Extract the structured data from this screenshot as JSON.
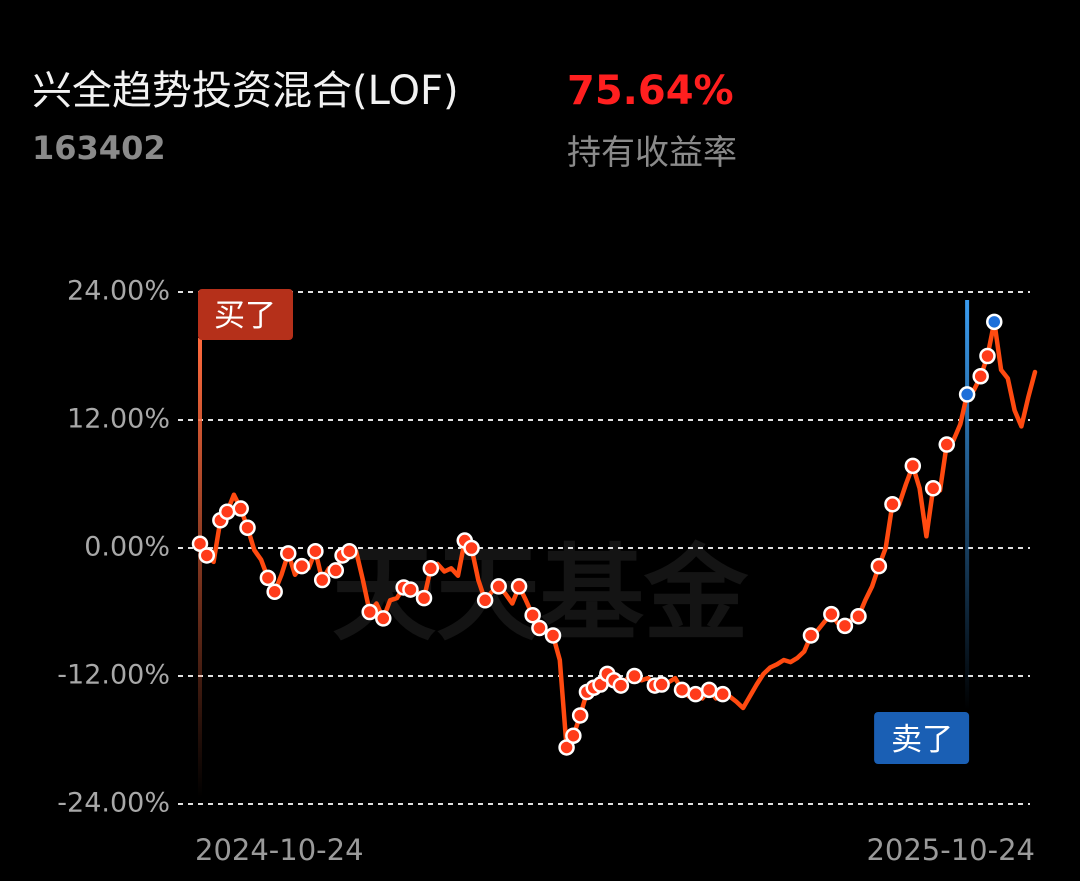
{
  "header": {
    "name": "兴全趋势投资混合(LOF)",
    "code": "163402",
    "return": "75.64%",
    "return_label": "持有收益率"
  },
  "chart_data": {
    "type": "line",
    "watermark": "天天基金",
    "categories": [
      "2024-10-24",
      null,
      null,
      null,
      null,
      null,
      null,
      null,
      null,
      null,
      null,
      null,
      null,
      null,
      null,
      null,
      null,
      null,
      null,
      null,
      null,
      null,
      null,
      null,
      null,
      null,
      null,
      null,
      null,
      null,
      null,
      null,
      null,
      null,
      null,
      null,
      null,
      null,
      null,
      null,
      null,
      null,
      null,
      null,
      null,
      null,
      null,
      null,
      null,
      null,
      null,
      null,
      null,
      null,
      null,
      null,
      null,
      null,
      null,
      null,
      null,
      null,
      null,
      null,
      null,
      null,
      null,
      null,
      null,
      null,
      null,
      null,
      null,
      null,
      null,
      null,
      null,
      null,
      null,
      null,
      null,
      null,
      null,
      null,
      null,
      null,
      null,
      null,
      null,
      null,
      null,
      null,
      null,
      null,
      null,
      null,
      null,
      null,
      null,
      null,
      null,
      null,
      null,
      null,
      null,
      null,
      null,
      null,
      null,
      null,
      null,
      null,
      null,
      null,
      null,
      null,
      null,
      null,
      null,
      null,
      null,
      null,
      null,
      "2025-10-24"
    ],
    "series": [
      {
        "style": "line",
        "color": "#ff4a10",
        "values": [
          0.4,
          -0.7,
          -1.3,
          2.6,
          3.4,
          5.0,
          3.7,
          1.9,
          -0.2,
          -1.1,
          -2.8,
          -4.1,
          -2.5,
          -0.5,
          -2.5,
          -1.7,
          -1.9,
          -0.3,
          -3.0,
          -1.9,
          -2.1,
          -0.7,
          -0.3,
          -0.3,
          -3.0,
          -6.0,
          -5.2,
          -6.6,
          -4.9,
          -4.7,
          -3.7,
          -3.9,
          -4.1,
          -4.7,
          -1.9,
          -1.5,
          -2.2,
          -1.9,
          -2.6,
          0.7,
          0.0,
          -3.0,
          -4.9,
          -4.1,
          -3.6,
          -4.3,
          -5.2,
          -3.6,
          -4.9,
          -6.3,
          -7.5,
          -7.9,
          -8.2,
          -10.5,
          -18.7,
          -17.6,
          -15.7,
          -13.5,
          -13.1,
          -12.8,
          -11.8,
          -12.4,
          -12.9,
          -12.2,
          -12.0,
          -12.4,
          -12.2,
          -12.9,
          -12.8,
          -12.6,
          -12.2,
          -13.3,
          -13.9,
          -13.7,
          -14.1,
          -13.3,
          -14.1,
          -13.7,
          -13.9,
          -14.4,
          -15.0,
          -13.9,
          -12.8,
          -11.8,
          -11.2,
          -10.9,
          -10.5,
          -10.7,
          -10.3,
          -9.7,
          -8.2,
          -7.7,
          -6.9,
          -6.2,
          -7.1,
          -7.3,
          -6.7,
          -6.4,
          -4.9,
          -3.6,
          -1.7,
          0.0,
          4.1,
          4.1,
          6.0,
          7.7,
          5.6,
          1.1,
          5.6,
          5.4,
          9.7,
          10.1,
          11.6,
          14.4,
          14.8,
          16.1,
          18.0,
          21.2,
          16.7,
          15.9,
          12.9,
          11.4,
          14.1,
          16.5
        ]
      },
      {
        "style": "dots",
        "color": "#ff3b1a",
        "values": [
          0.4,
          -0.7,
          null,
          2.6,
          3.4,
          null,
          3.7,
          1.9,
          null,
          null,
          -2.8,
          -4.1,
          null,
          -0.5,
          null,
          -1.7,
          null,
          -0.3,
          -3.0,
          null,
          -2.1,
          -0.7,
          -0.3,
          null,
          null,
          -6.0,
          null,
          -6.6,
          null,
          null,
          -3.7,
          -3.9,
          null,
          -4.7,
          -1.9,
          null,
          null,
          null,
          null,
          0.7,
          0.0,
          null,
          -4.9,
          null,
          -3.6,
          null,
          null,
          -3.6,
          null,
          -6.3,
          -7.5,
          null,
          -8.2,
          null,
          -18.7,
          -17.6,
          -15.7,
          -13.5,
          -13.1,
          -12.8,
          -11.8,
          -12.4,
          -12.9,
          null,
          -12.0,
          null,
          null,
          -12.9,
          -12.8,
          null,
          null,
          -13.3,
          null,
          -13.7,
          null,
          -13.3,
          null,
          -13.7,
          null,
          null,
          null,
          null,
          null,
          null,
          null,
          null,
          null,
          null,
          null,
          null,
          -8.2,
          null,
          null,
          -6.2,
          null,
          -7.3,
          null,
          -6.4,
          null,
          null,
          -1.7,
          null,
          4.1,
          null,
          null,
          7.7,
          null,
          null,
          5.6,
          null,
          9.7,
          null,
          null,
          null,
          null,
          16.1,
          18.0,
          null,
          null,
          null,
          null,
          null,
          null,
          null
        ]
      },
      {
        "style": "dots",
        "color": "#1e6fd9",
        "values": [
          null,
          null,
          null,
          null,
          null,
          null,
          null,
          null,
          null,
          null,
          null,
          null,
          null,
          null,
          null,
          null,
          null,
          null,
          null,
          null,
          null,
          null,
          null,
          null,
          null,
          null,
          null,
          null,
          null,
          null,
          null,
          null,
          null,
          null,
          null,
          null,
          null,
          null,
          null,
          null,
          null,
          null,
          null,
          null,
          null,
          null,
          null,
          null,
          null,
          null,
          null,
          null,
          null,
          null,
          null,
          null,
          null,
          null,
          null,
          null,
          null,
          null,
          null,
          null,
          null,
          null,
          null,
          null,
          null,
          null,
          null,
          null,
          null,
          null,
          null,
          null,
          null,
          null,
          null,
          null,
          null,
          null,
          null,
          null,
          null,
          null,
          null,
          null,
          null,
          null,
          null,
          null,
          null,
          null,
          null,
          null,
          null,
          null,
          null,
          null,
          null,
          null,
          null,
          null,
          null,
          null,
          null,
          null,
          null,
          null,
          null,
          null,
          null,
          14.4,
          null,
          null,
          null,
          21.2,
          null,
          null,
          null,
          null,
          null,
          null
        ]
      }
    ],
    "annotations": {
      "buy": "买了",
      "sell": "卖了"
    },
    "ylim": [
      -24,
      24
    ],
    "yticks": [
      {
        "value": 24,
        "label": "24.00%"
      },
      {
        "value": 12,
        "label": "12.00%"
      },
      {
        "value": 0,
        "label": "0.00%"
      },
      {
        "value": -12,
        "label": "-12.00%"
      },
      {
        "value": -24,
        "label": "-24.00%"
      }
    ],
    "grid": true
  }
}
